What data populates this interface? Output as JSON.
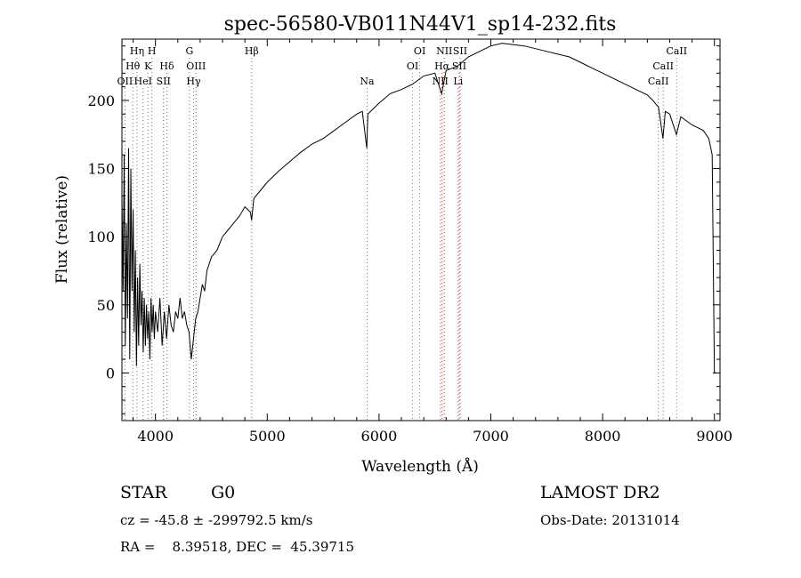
{
  "chart_data": {
    "type": "line",
    "title": "spec-56580-VB011N44V1_sp14-232.fits",
    "xlabel": "Wavelength (Å)",
    "ylabel": "Flux (relative)",
    "xlim": [
      3700,
      9050
    ],
    "ylim": [
      -35,
      245
    ],
    "xticks": [
      4000,
      5000,
      6000,
      7000,
      8000,
      9000
    ],
    "yticks": [
      0,
      50,
      100,
      150,
      200
    ],
    "grid": false,
    "series": [
      {
        "values": [
          [
            3700,
            130
          ],
          [
            3710,
            60
          ],
          [
            3720,
            160
          ],
          [
            3730,
            20
          ],
          [
            3740,
            110
          ],
          [
            3750,
            40
          ],
          [
            3760,
            165
          ],
          [
            3770,
            10
          ],
          [
            3780,
            150
          ],
          [
            3790,
            60
          ],
          [
            3800,
            120
          ],
          [
            3810,
            30
          ],
          [
            3820,
            90
          ],
          [
            3830,
            5
          ],
          [
            3840,
            70
          ],
          [
            3850,
            20
          ],
          [
            3860,
            80
          ],
          [
            3870,
            35
          ],
          [
            3880,
            60
          ],
          [
            3890,
            15
          ],
          [
            3900,
            55
          ],
          [
            3910,
            20
          ],
          [
            3920,
            50
          ],
          [
            3930,
            25
          ],
          [
            3940,
            45
          ],
          [
            3950,
            10
          ],
          [
            3960,
            55
          ],
          [
            3970,
            30
          ],
          [
            3980,
            50
          ],
          [
            3990,
            25
          ],
          [
            4000,
            45
          ],
          [
            4020,
            30
          ],
          [
            4040,
            55
          ],
          [
            4060,
            20
          ],
          [
            4080,
            45
          ],
          [
            4100,
            25
          ],
          [
            4120,
            50
          ],
          [
            4140,
            35
          ],
          [
            4160,
            30
          ],
          [
            4180,
            45
          ],
          [
            4200,
            40
          ],
          [
            4220,
            55
          ],
          [
            4240,
            40
          ],
          [
            4260,
            45
          ],
          [
            4280,
            35
          ],
          [
            4300,
            30
          ],
          [
            4320,
            10
          ],
          [
            4340,
            25
          ],
          [
            4360,
            40
          ],
          [
            4380,
            45
          ],
          [
            4400,
            55
          ],
          [
            4420,
            65
          ],
          [
            4440,
            60
          ],
          [
            4460,
            75
          ],
          [
            4480,
            80
          ],
          [
            4500,
            85
          ],
          [
            4550,
            90
          ],
          [
            4600,
            100
          ],
          [
            4650,
            105
          ],
          [
            4700,
            110
          ],
          [
            4750,
            115
          ],
          [
            4800,
            122
          ],
          [
            4850,
            118
          ],
          [
            4860,
            112
          ],
          [
            4880,
            128
          ],
          [
            4900,
            130
          ],
          [
            4950,
            135
          ],
          [
            5000,
            140
          ],
          [
            5100,
            148
          ],
          [
            5200,
            155
          ],
          [
            5300,
            162
          ],
          [
            5400,
            168
          ],
          [
            5500,
            172
          ],
          [
            5600,
            178
          ],
          [
            5700,
            184
          ],
          [
            5800,
            190
          ],
          [
            5850,
            192
          ],
          [
            5890,
            165
          ],
          [
            5900,
            190
          ],
          [
            6000,
            198
          ],
          [
            6100,
            205
          ],
          [
            6200,
            208
          ],
          [
            6300,
            212
          ],
          [
            6400,
            218
          ],
          [
            6500,
            220
          ],
          [
            6560,
            205
          ],
          [
            6600,
            222
          ],
          [
            6700,
            225
          ],
          [
            6800,
            232
          ],
          [
            6900,
            236
          ],
          [
            7000,
            240
          ],
          [
            7100,
            242
          ],
          [
            7200,
            241
          ],
          [
            7300,
            240
          ],
          [
            7400,
            238
          ],
          [
            7500,
            236
          ],
          [
            7600,
            234
          ],
          [
            7700,
            232
          ],
          [
            7800,
            228
          ],
          [
            7900,
            224
          ],
          [
            8000,
            220
          ],
          [
            8100,
            216
          ],
          [
            8200,
            212
          ],
          [
            8300,
            208
          ],
          [
            8400,
            204
          ],
          [
            8450,
            200
          ],
          [
            8500,
            195
          ],
          [
            8540,
            172
          ],
          [
            8560,
            192
          ],
          [
            8600,
            190
          ],
          [
            8660,
            175
          ],
          [
            8700,
            188
          ],
          [
            8800,
            182
          ],
          [
            8900,
            178
          ],
          [
            8950,
            172
          ],
          [
            8980,
            160
          ],
          [
            9000,
            0
          ],
          [
            9020,
            0
          ]
        ]
      }
    ],
    "annotations": {
      "spectral_lines": [
        {
          "name": "Hη",
          "wavelength": 3835,
          "row": 0
        },
        {
          "name": "Hθ",
          "wavelength": 3797,
          "row": 1
        },
        {
          "name": "OII",
          "wavelength": 3727,
          "row": 2
        },
        {
          "name": "H",
          "wavelength": 3968,
          "row": 0
        },
        {
          "name": "K",
          "wavelength": 3933,
          "row": 1
        },
        {
          "name": "HeI",
          "wavelength": 3889,
          "row": 2
        },
        {
          "name": "SII",
          "wavelength": 4072,
          "row": 2
        },
        {
          "name": "Hδ",
          "wavelength": 4102,
          "row": 1
        },
        {
          "name": "G",
          "wavelength": 4304,
          "row": 0
        },
        {
          "name": "OIII",
          "wavelength": 4363,
          "row": 1
        },
        {
          "name": "Hγ",
          "wavelength": 4341,
          "row": 2
        },
        {
          "name": "Hβ",
          "wavelength": 4861,
          "row": 0
        },
        {
          "name": "Na",
          "wavelength": 5893,
          "row": 2
        },
        {
          "name": "OI",
          "wavelength": 6364,
          "row": 0
        },
        {
          "name": "OI",
          "wavelength": 6300,
          "row": 1
        },
        {
          "name": "NII",
          "wavelength": 6584,
          "row": 0
        },
        {
          "name": "SII",
          "wavelength": 6725,
          "row": 0
        },
        {
          "name": "Hα",
          "wavelength": 6563,
          "row": 1
        },
        {
          "name": "SII",
          "wavelength": 6717,
          "row": 1
        },
        {
          "name": "NII",
          "wavelength": 6548,
          "row": 2
        },
        {
          "name": "Li",
          "wavelength": 6708,
          "row": 2
        },
        {
          "name": "CaII",
          "wavelength": 8662,
          "row": 0
        },
        {
          "name": "CaII",
          "wavelength": 8542,
          "row": 1
        },
        {
          "name": "CaII",
          "wavelength": 8498,
          "row": 2
        }
      ]
    }
  },
  "info": {
    "class": "STAR",
    "subclass": "G0",
    "survey": "LAMOST DR2",
    "cz_line": "cz = -45.8 ± -299792.5 km/s",
    "obs_date_line": "Obs-Date: 20131014",
    "radec_line": "RA =    8.39518, DEC =  45.39715"
  }
}
